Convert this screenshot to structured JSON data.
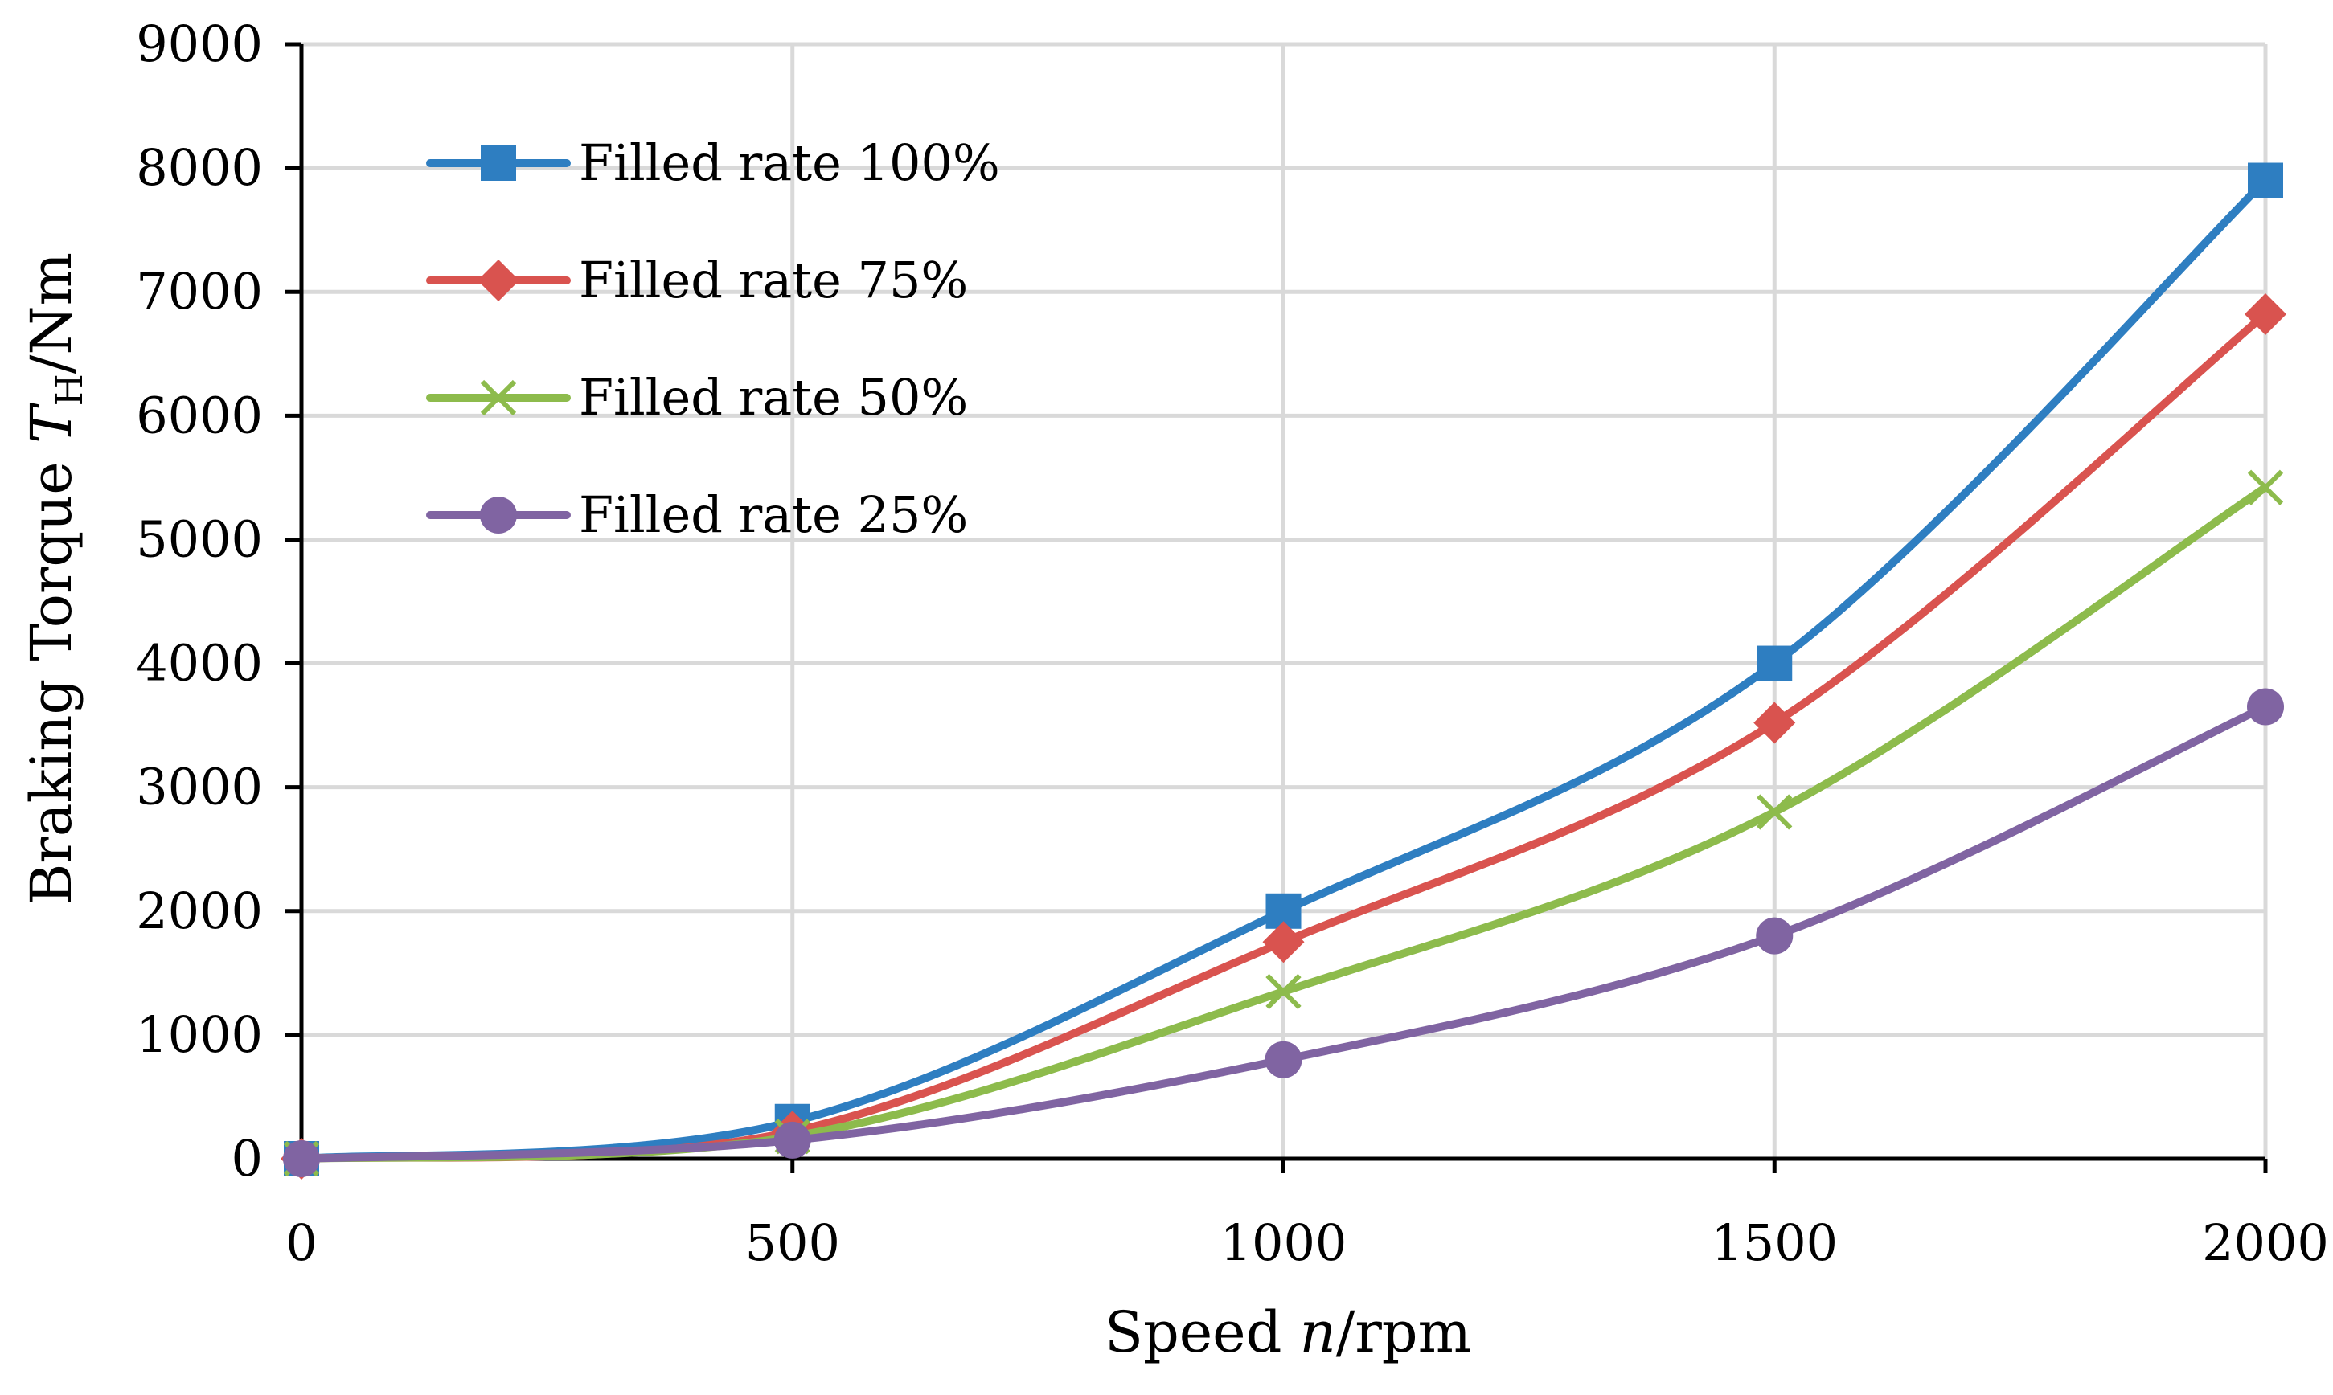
{
  "chart_data": {
    "type": "line",
    "title": "",
    "xlabel": {
      "prefix": "Speed ",
      "var": "n",
      "suffix": "/rpm"
    },
    "ylabel": {
      "prefix": "Braking Torque ",
      "var": "T",
      "sub": "H",
      "suffix": "/Nm"
    },
    "x": [
      0,
      500,
      1000,
      1500,
      2000
    ],
    "xlim": [
      0,
      2000
    ],
    "ylim": [
      0,
      9000
    ],
    "xticks": [
      0,
      500,
      1000,
      1500,
      2000
    ],
    "yticks": [
      0,
      1000,
      2000,
      3000,
      4000,
      5000,
      6000,
      7000,
      8000,
      9000
    ],
    "grid": true,
    "legend_position": "top-left",
    "series": [
      {
        "name": "Filled rate 100%",
        "color": "#2E7EC1",
        "marker": "square",
        "values": [
          0,
          300,
          2000,
          4000,
          7900
        ]
      },
      {
        "name": "Filled rate 75%",
        "color": "#D9534F",
        "marker": "diamond",
        "values": [
          0,
          220,
          1750,
          3520,
          6820
        ]
      },
      {
        "name": "Filled rate 50%",
        "color": "#8DBB4C",
        "marker": "x",
        "values": [
          0,
          180,
          1350,
          2800,
          5420
        ]
      },
      {
        "name": "Filled rate 25%",
        "color": "#8064A2",
        "marker": "circle",
        "values": [
          0,
          150,
          800,
          1800,
          3650
        ]
      }
    ]
  }
}
